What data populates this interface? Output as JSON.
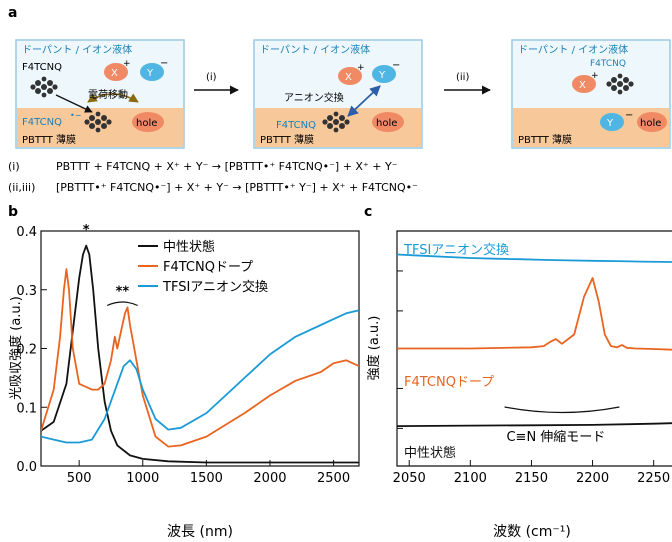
{
  "panel_a": {
    "letter": "a",
    "boxes": [
      {
        "title": "ドーパント / イオン液体",
        "film_label": "PBTTT 薄膜",
        "dopant_label": "F4TCNQ",
        "x_ion": "X",
        "y_ion": "Y",
        "charge_label": "電荷移動",
        "film_dopant": "F4TCNQ",
        "hole": "hole"
      },
      {
        "title": "ドーパント / イオン液体",
        "film_label": "PBTTT 薄膜",
        "x_ion": "X",
        "y_ion": "Y",
        "exchange_label": "アニオン交換",
        "film_dopant": "F4TCNQ",
        "hole": "hole"
      },
      {
        "title": "ドーパント / イオン液体",
        "film_label": "PBTTT 薄膜",
        "x_ion": "X",
        "released_dopant": "F4TCNQ",
        "film_anion": "Y",
        "hole": "hole"
      }
    ],
    "step_labels": [
      "(i)",
      "(ii)"
    ],
    "equations": [
      {
        "tag": "(i)",
        "text": "PBTTT + F4TCNQ + X⁺ + Y⁻ → [PBTTT•⁺ F4TCNQ•⁻] + X⁺ + Y⁻"
      },
      {
        "tag": "(ii,iii)",
        "text": "[PBTTT•⁺ F4TCNQ•⁻] + X⁺ + Y⁻ → [PBTTT•⁺ Y⁻] + X⁺ + F4TCNQ•⁻"
      }
    ],
    "colors": {
      "box_border": "#9cc9e2",
      "box_fill": "#eef7fc",
      "film": "#f7c99a",
      "cation": "#f08a64",
      "anion": "#4fb6e4",
      "arrow_exchange": "#2c5fa8",
      "arrow_charge": "#8a6a10",
      "text_blue": "#1a7fb8",
      "text_orange": "#e8641f"
    }
  },
  "panel_b": {
    "letter": "b",
    "chart_data": {
      "type": "line",
      "xlabel": "波長 (nm)",
      "ylabel": "光吸収強度 (a.u.)",
      "xlim": [
        200,
        2700
      ],
      "ylim": [
        0,
        0.4
      ],
      "xticks": [
        500,
        1000,
        1500,
        2000,
        2500
      ],
      "yticks": [
        0.0,
        0.1,
        0.2,
        0.3,
        0.4
      ],
      "ytick_labels": [
        "0.0",
        "0.1",
        "0.2",
        "0.3",
        "0.4"
      ],
      "legend_position": "top-right",
      "annotations": [
        {
          "text": "*",
          "x": 555,
          "y": 0.395
        },
        {
          "text": "**",
          "x": 840,
          "y": 0.29
        }
      ],
      "series": [
        {
          "name": "中性状態",
          "color": "#111111",
          "x": [
            200,
            300,
            400,
            450,
            500,
            530,
            555,
            580,
            610,
            650,
            700,
            750,
            800,
            900,
            1000,
            1200,
            1500,
            2000,
            2500,
            2700
          ],
          "y": [
            0.06,
            0.075,
            0.14,
            0.23,
            0.32,
            0.36,
            0.375,
            0.36,
            0.3,
            0.2,
            0.11,
            0.06,
            0.035,
            0.018,
            0.012,
            0.008,
            0.006,
            0.006,
            0.006,
            0.006
          ]
        },
        {
          "name": "F4TCNQドープ",
          "color": "#e8641f",
          "x": [
            200,
            300,
            350,
            380,
            400,
            420,
            450,
            500,
            550,
            600,
            650,
            700,
            750,
            780,
            800,
            830,
            860,
            880,
            900,
            950,
            1000,
            1100,
            1200,
            1300,
            1500,
            1800,
            2000,
            2200,
            2400,
            2500,
            2600,
            2700
          ],
          "y": [
            0.06,
            0.13,
            0.22,
            0.3,
            0.335,
            0.3,
            0.2,
            0.14,
            0.135,
            0.13,
            0.13,
            0.14,
            0.18,
            0.22,
            0.2,
            0.23,
            0.26,
            0.27,
            0.24,
            0.18,
            0.12,
            0.05,
            0.033,
            0.035,
            0.05,
            0.09,
            0.12,
            0.145,
            0.16,
            0.175,
            0.18,
            0.17
          ]
        },
        {
          "name": "TFSIアニオン交換",
          "color": "#1a9ad6",
          "x": [
            200,
            300,
            400,
            500,
            600,
            700,
            800,
            850,
            900,
            950,
            1000,
            1100,
            1200,
            1300,
            1500,
            1800,
            2000,
            2200,
            2400,
            2500,
            2600,
            2700
          ],
          "y": [
            0.05,
            0.045,
            0.04,
            0.04,
            0.045,
            0.08,
            0.14,
            0.17,
            0.18,
            0.165,
            0.13,
            0.08,
            0.062,
            0.065,
            0.09,
            0.15,
            0.19,
            0.22,
            0.24,
            0.25,
            0.26,
            0.265
          ]
        }
      ]
    }
  },
  "panel_c": {
    "letter": "c",
    "chart_data": {
      "type": "line",
      "xlabel": "波数 (cm⁻¹)",
      "ylabel": "強度 (a.u.)",
      "xlim": [
        2040,
        2265
      ],
      "xticks": [
        2050,
        2100,
        2150,
        2200,
        2250
      ],
      "ylim": [
        0,
        1
      ],
      "annotations": [
        {
          "text": "C≡N 伸縮モード"
        }
      ],
      "series": [
        {
          "name": "TFSIアニオン交換",
          "color": "#1a9ad6",
          "x": [
            2040,
            2060,
            2080,
            2100,
            2120,
            2140,
            2160,
            2180,
            2200,
            2220,
            2240,
            2265
          ],
          "y": [
            0.9,
            0.895,
            0.89,
            0.885,
            0.882,
            0.88,
            0.877,
            0.875,
            0.873,
            0.872,
            0.87,
            0.868
          ]
        },
        {
          "name": "F4TCNQドープ",
          "color": "#e8641f",
          "x": [
            2040,
            2100,
            2150,
            2160,
            2166,
            2170,
            2175,
            2185,
            2193,
            2200,
            2205,
            2210,
            2215,
            2220,
            2224,
            2228,
            2235,
            2250,
            2265
          ],
          "y": [
            0.5,
            0.5,
            0.505,
            0.51,
            0.53,
            0.54,
            0.52,
            0.56,
            0.72,
            0.8,
            0.7,
            0.56,
            0.51,
            0.505,
            0.515,
            0.503,
            0.5,
            0.498,
            0.495
          ]
        },
        {
          "name": "中性状態",
          "color": "#111111",
          "x": [
            2040,
            2100,
            2150,
            2200,
            2250,
            2265
          ],
          "y": [
            0.17,
            0.172,
            0.173,
            0.175,
            0.18,
            0.182
          ]
        }
      ]
    }
  }
}
